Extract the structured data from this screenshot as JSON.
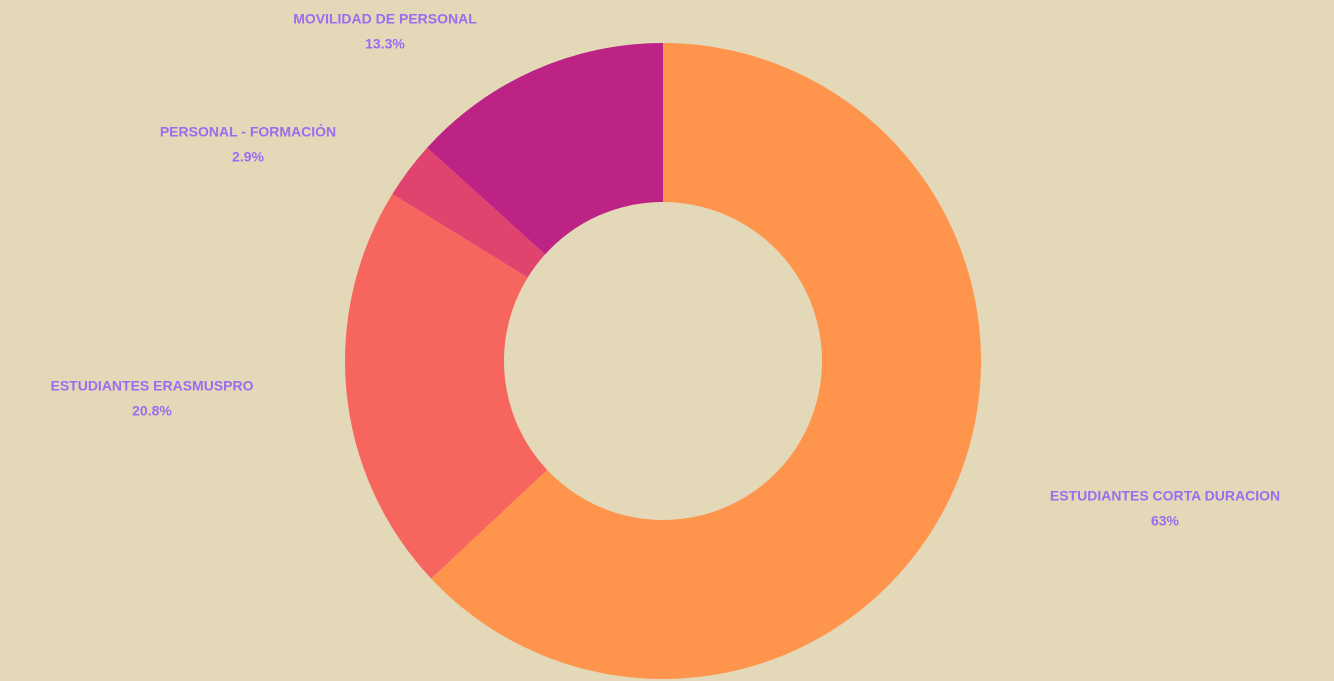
{
  "chart_data": {
    "type": "pie",
    "categories": [
      "ESTUDIANTES CORTA DURACION",
      "ESTUDIANTES ERASMUSPRO",
      "PERSONAL - FORMACIÓN",
      "MOVILIDAD DE PERSONAL"
    ],
    "values": [
      63,
      20.8,
      2.9,
      13.3
    ],
    "value_labels": [
      "63%",
      "20.8%",
      "2.9%",
      "13.3%"
    ],
    "colors": [
      "#ff944d",
      "#f7665e",
      "#e0446e",
      "#bc2385"
    ]
  }
}
